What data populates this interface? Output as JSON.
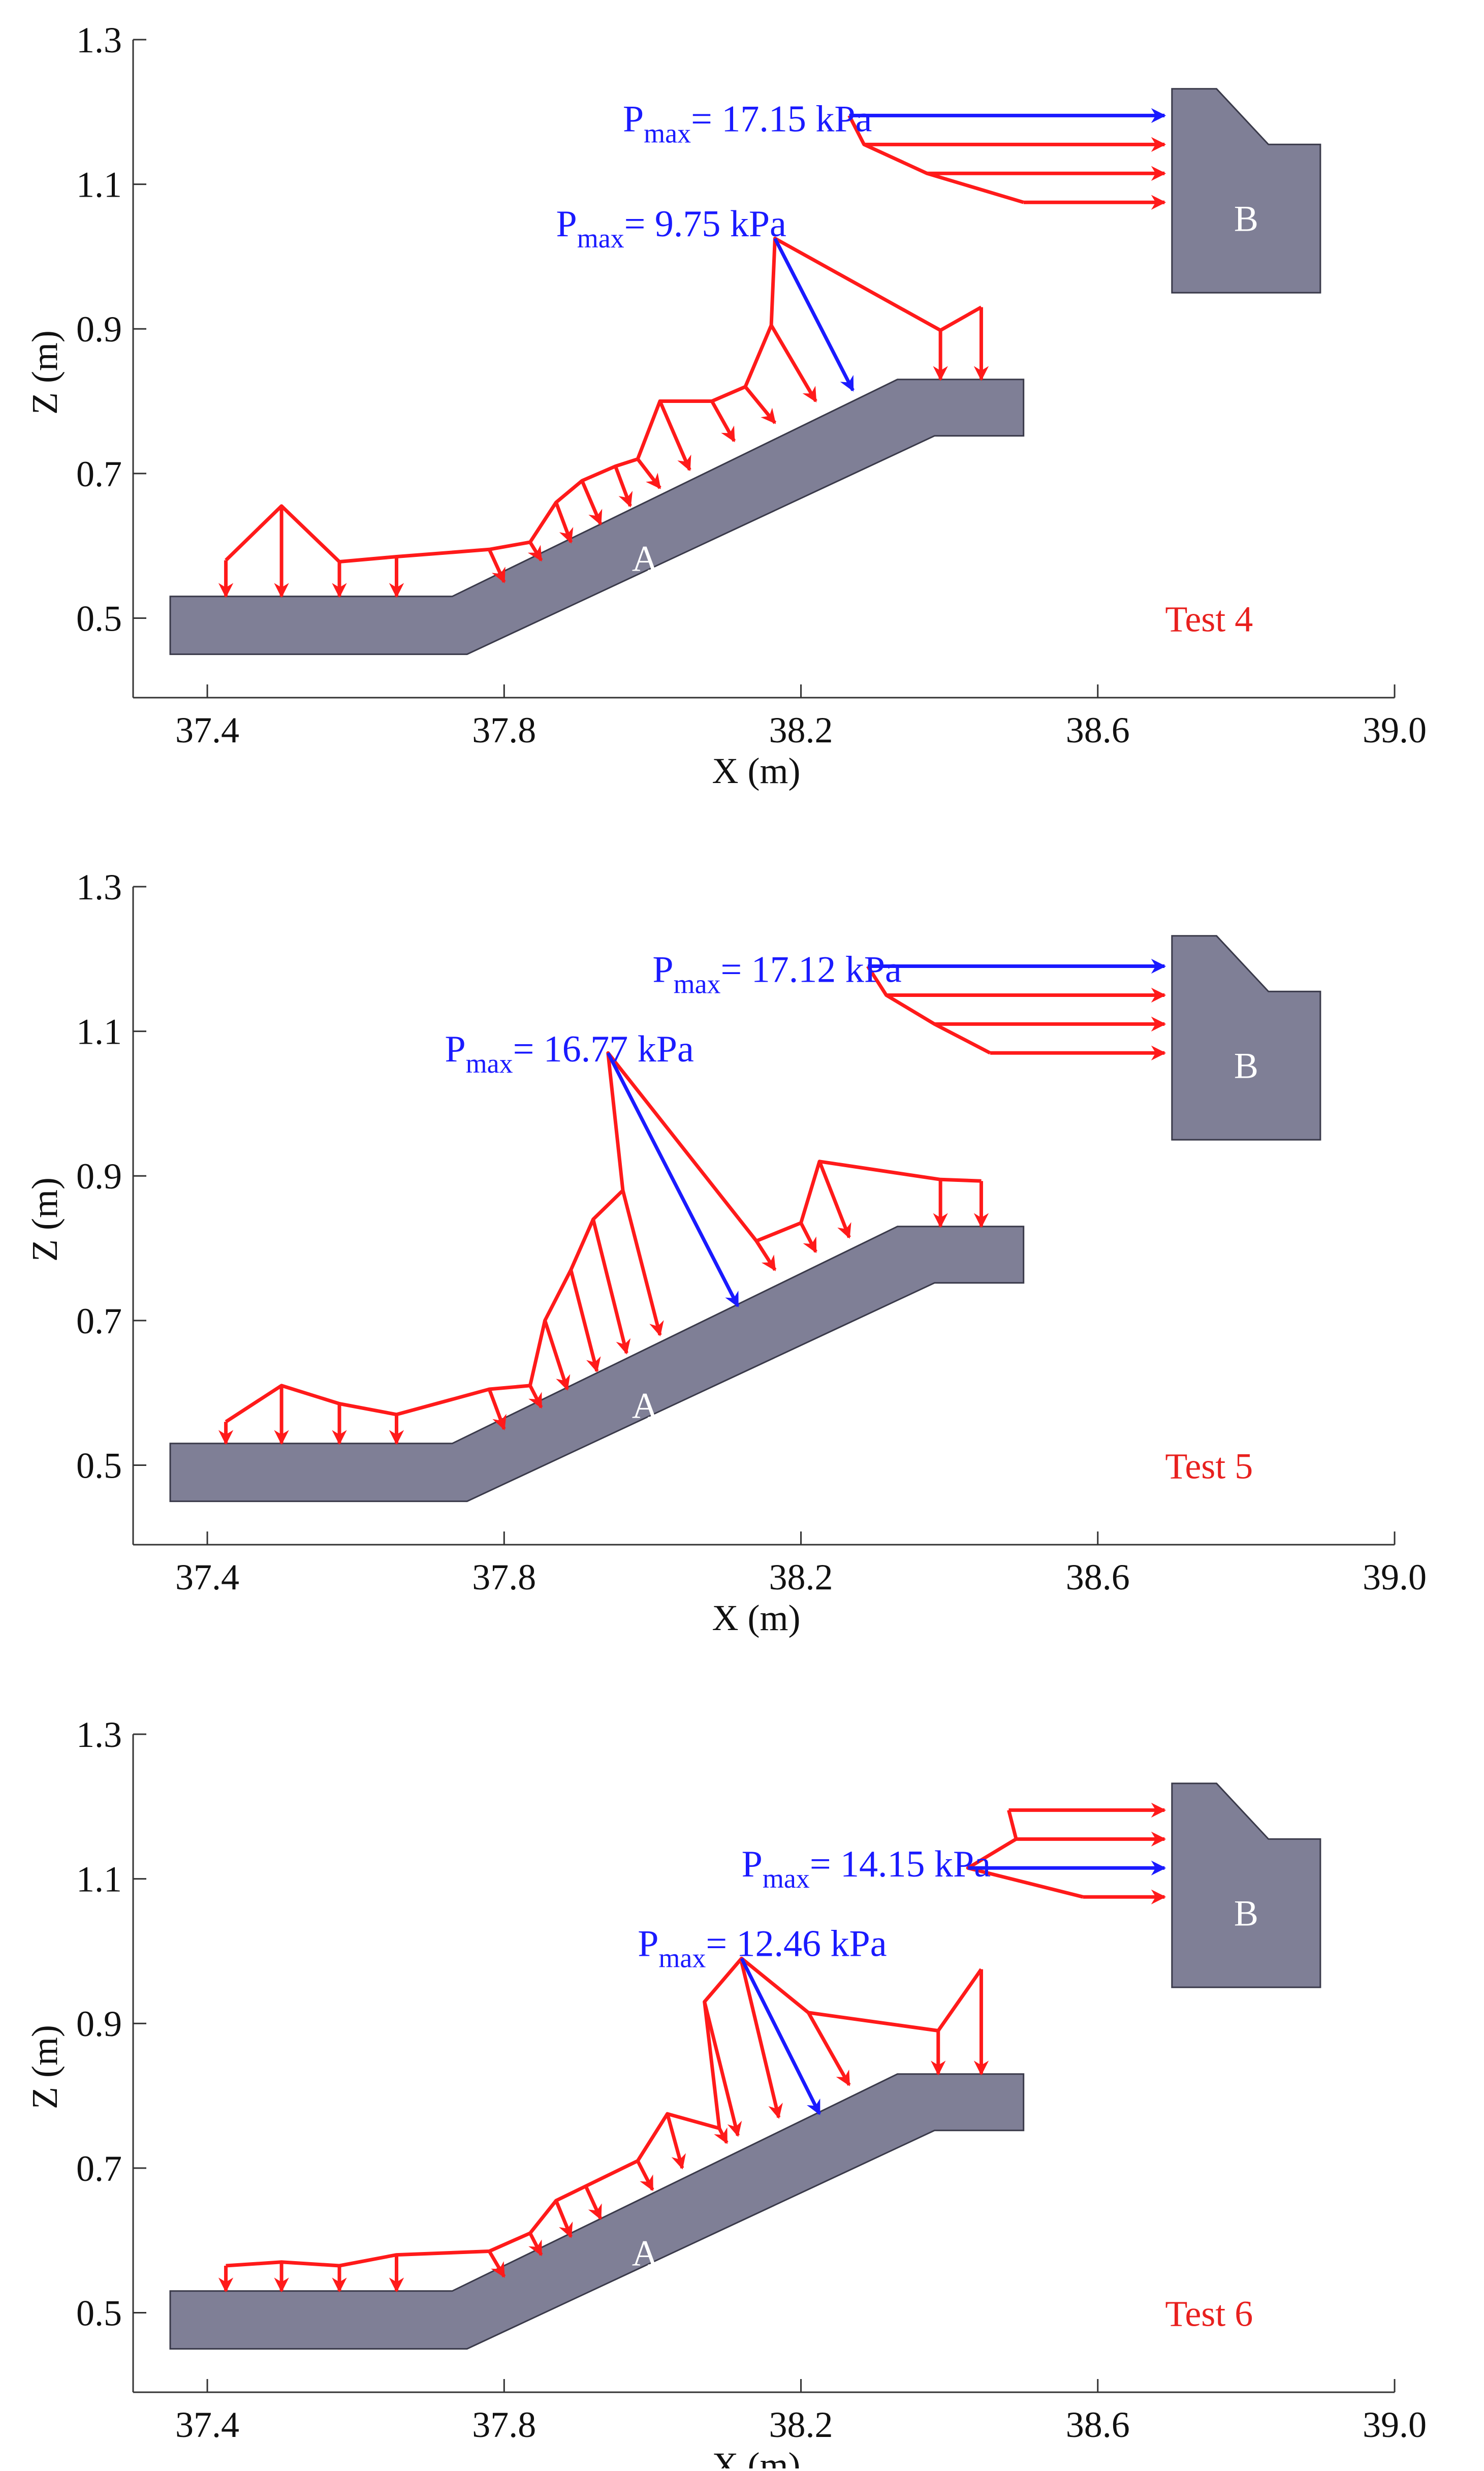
{
  "colors": {
    "structure_fill": "#7f7f96",
    "structure_stroke": "#3a3a4a",
    "pressure": "#ff1a1a",
    "pressure_max": "#1a1aff",
    "axis": "#333333",
    "text": "#111111",
    "structure_label": "#ffffff",
    "test_label": "#e8201e"
  },
  "chart_data": [
    {
      "type": "vector",
      "test_label": "Test 4",
      "xlabel": "X (m)",
      "ylabel": "Z (m)",
      "xlim": [
        37.3,
        39.0
      ],
      "ylim": [
        0.39,
        1.3
      ],
      "xticks": [
        "37.4",
        "37.8",
        "38.2",
        "38.6",
        "39.0"
      ],
      "yticks": [
        "0.5",
        "0.7",
        "0.9",
        "1.1",
        "1.3"
      ],
      "structure_labels": [
        "A",
        "B"
      ],
      "pmax_annotations": [
        {
          "prefix": "P",
          "sub": "max",
          "value": "= 17.15 kPa",
          "x": 37.96,
          "z": 1.19
        },
        {
          "prefix": "P",
          "sub": "max",
          "value": "= 9.75 kPa",
          "x": 37.87,
          "z": 1.045
        }
      ],
      "vectors": [
        {
          "sx": 37.425,
          "sz": 0.58,
          "ex": 37.425,
          "ez": 0.53
        },
        {
          "sx": 37.5,
          "sz": 0.655,
          "ex": 37.5,
          "ez": 0.53
        },
        {
          "sx": 37.578,
          "sz": 0.578,
          "ex": 37.578,
          "ez": 0.53
        },
        {
          "sx": 37.655,
          "sz": 0.585,
          "ex": 37.655,
          "ez": 0.53
        },
        {
          "sx": 37.78,
          "sz": 0.595,
          "ex": 37.8,
          "ez": 0.55
        },
        {
          "sx": 37.835,
          "sz": 0.605,
          "ex": 37.85,
          "ez": 0.58
        },
        {
          "sx": 37.87,
          "sz": 0.66,
          "ex": 37.89,
          "ez": 0.605
        },
        {
          "sx": 37.905,
          "sz": 0.69,
          "ex": 37.93,
          "ez": 0.63
        },
        {
          "sx": 37.95,
          "sz": 0.71,
          "ex": 37.97,
          "ez": 0.655
        },
        {
          "sx": 37.98,
          "sz": 0.72,
          "ex": 38.01,
          "ez": 0.68
        },
        {
          "sx": 38.01,
          "sz": 0.8,
          "ex": 38.05,
          "ez": 0.705
        },
        {
          "sx": 38.08,
          "sz": 0.8,
          "ex": 38.11,
          "ez": 0.745
        },
        {
          "sx": 38.125,
          "sz": 0.82,
          "ex": 38.165,
          "ez": 0.77
        },
        {
          "sx": 38.16,
          "sz": 0.905,
          "ex": 38.22,
          "ez": 0.8
        },
        {
          "sx": 38.388,
          "sz": 0.898,
          "ex": 38.388,
          "ez": 0.83
        },
        {
          "sx": 38.443,
          "sz": 0.93,
          "ex": 38.443,
          "ez": 0.83
        },
        {
          "sx": 38.285,
          "sz": 1.155,
          "ex": 38.69,
          "ez": 1.155
        },
        {
          "sx": 38.37,
          "sz": 1.115,
          "ex": 38.69,
          "ez": 1.115
        },
        {
          "sx": 38.5,
          "sz": 1.075,
          "ex": 38.69,
          "ez": 1.075
        }
      ],
      "pmax_vectors": [
        {
          "sx": 38.265,
          "sz": 1.195,
          "ex": 38.69,
          "ez": 1.195
        },
        {
          "sx": 38.165,
          "sz": 1.025,
          "ex": 38.27,
          "ez": 0.815
        }
      ],
      "envelopes": [
        [
          [
            37.425,
            0.58
          ],
          [
            37.5,
            0.655
          ],
          [
            37.578,
            0.578
          ],
          [
            37.655,
            0.585
          ],
          [
            37.78,
            0.595
          ],
          [
            37.835,
            0.605
          ],
          [
            37.87,
            0.66
          ],
          [
            37.905,
            0.69
          ],
          [
            37.95,
            0.71
          ],
          [
            37.98,
            0.72
          ],
          [
            38.01,
            0.8
          ],
          [
            38.08,
            0.8
          ],
          [
            38.125,
            0.82
          ],
          [
            38.16,
            0.905
          ],
          [
            38.165,
            1.025
          ],
          [
            38.388,
            0.898
          ],
          [
            38.443,
            0.93
          ]
        ],
        [
          [
            38.265,
            1.195
          ],
          [
            38.285,
            1.155
          ],
          [
            38.37,
            1.115
          ],
          [
            38.5,
            1.075
          ]
        ]
      ]
    },
    {
      "type": "vector",
      "test_label": "Test 5",
      "xlabel": "X (m)",
      "ylabel": "Z (m)",
      "xlim": [
        37.3,
        39.0
      ],
      "ylim": [
        0.39,
        1.3
      ],
      "xticks": [
        "37.4",
        "37.8",
        "38.2",
        "38.6",
        "39.0"
      ],
      "yticks": [
        "0.5",
        "0.7",
        "0.9",
        "1.1",
        "1.3"
      ],
      "structure_labels": [
        "A",
        "B"
      ],
      "pmax_annotations": [
        {
          "prefix": "P",
          "sub": "max",
          "value": "= 17.12 kPa",
          "x": 38.0,
          "z": 1.185
        },
        {
          "prefix": "P",
          "sub": "max",
          "value": "= 16.77 kPa",
          "x": 37.72,
          "z": 1.075
        }
      ],
      "vectors": [
        {
          "sx": 37.425,
          "sz": 0.56,
          "ex": 37.425,
          "ez": 0.53
        },
        {
          "sx": 37.5,
          "sz": 0.61,
          "ex": 37.5,
          "ez": 0.53
        },
        {
          "sx": 37.578,
          "sz": 0.585,
          "ex": 37.578,
          "ez": 0.53
        },
        {
          "sx": 37.655,
          "sz": 0.57,
          "ex": 37.655,
          "ez": 0.53
        },
        {
          "sx": 37.78,
          "sz": 0.605,
          "ex": 37.8,
          "ez": 0.55
        },
        {
          "sx": 37.835,
          "sz": 0.61,
          "ex": 37.85,
          "ez": 0.58
        },
        {
          "sx": 37.855,
          "sz": 0.7,
          "ex": 37.885,
          "ez": 0.605
        },
        {
          "sx": 37.89,
          "sz": 0.77,
          "ex": 37.925,
          "ez": 0.63
        },
        {
          "sx": 37.92,
          "sz": 0.84,
          "ex": 37.965,
          "ez": 0.655
        },
        {
          "sx": 37.96,
          "sz": 0.88,
          "ex": 38.01,
          "ez": 0.68
        },
        {
          "sx": 38.14,
          "sz": 0.81,
          "ex": 38.165,
          "ez": 0.77
        },
        {
          "sx": 38.2,
          "sz": 0.835,
          "ex": 38.22,
          "ez": 0.795
        },
        {
          "sx": 38.225,
          "sz": 0.92,
          "ex": 38.265,
          "ez": 0.815
        },
        {
          "sx": 38.388,
          "sz": 0.895,
          "ex": 38.388,
          "ez": 0.83
        },
        {
          "sx": 38.443,
          "sz": 0.893,
          "ex": 38.443,
          "ez": 0.83
        },
        {
          "sx": 38.315,
          "sz": 1.15,
          "ex": 38.69,
          "ez": 1.15
        },
        {
          "sx": 38.38,
          "sz": 1.11,
          "ex": 38.69,
          "ez": 1.11
        },
        {
          "sx": 38.455,
          "sz": 1.07,
          "ex": 38.69,
          "ez": 1.07
        }
      ],
      "pmax_vectors": [
        {
          "sx": 38.29,
          "sz": 1.19,
          "ex": 38.69,
          "ez": 1.19
        },
        {
          "sx": 37.94,
          "sz": 1.07,
          "ex": 38.115,
          "ez": 0.72
        }
      ],
      "envelopes": [
        [
          [
            37.425,
            0.56
          ],
          [
            37.5,
            0.61
          ],
          [
            37.578,
            0.585
          ],
          [
            37.655,
            0.57
          ],
          [
            37.78,
            0.605
          ],
          [
            37.835,
            0.61
          ],
          [
            37.855,
            0.7
          ],
          [
            37.89,
            0.77
          ],
          [
            37.92,
            0.84
          ],
          [
            37.96,
            0.88
          ],
          [
            37.94,
            1.07
          ],
          [
            38.14,
            0.81
          ],
          [
            38.2,
            0.835
          ],
          [
            38.225,
            0.92
          ],
          [
            38.388,
            0.895
          ],
          [
            38.443,
            0.893
          ]
        ],
        [
          [
            38.29,
            1.19
          ],
          [
            38.315,
            1.15
          ],
          [
            38.38,
            1.11
          ],
          [
            38.455,
            1.07
          ]
        ]
      ]
    },
    {
      "type": "vector",
      "test_label": "Test 6",
      "xlabel": "X (m)",
      "ylabel": "Z (m)",
      "xlim": [
        37.3,
        39.0
      ],
      "ylim": [
        0.39,
        1.3
      ],
      "xticks": [
        "37.4",
        "37.8",
        "38.2",
        "38.6",
        "39.0"
      ],
      "yticks": [
        "0.5",
        "0.7",
        "0.9",
        "1.1",
        "1.3"
      ],
      "structure_labels": [
        "A",
        "B"
      ],
      "pmax_annotations": [
        {
          "prefix": "P",
          "sub": "max",
          "value": "= 14.15 kPa",
          "x": 38.12,
          "z": 1.12
        },
        {
          "prefix": "P",
          "sub": "max",
          "value": "= 12.46 kPa",
          "x": 37.98,
          "z": 1.01
        }
      ],
      "vectors": [
        {
          "sx": 37.425,
          "sz": 0.565,
          "ex": 37.425,
          "ez": 0.53
        },
        {
          "sx": 37.5,
          "sz": 0.57,
          "ex": 37.5,
          "ez": 0.53
        },
        {
          "sx": 37.578,
          "sz": 0.565,
          "ex": 37.578,
          "ez": 0.53
        },
        {
          "sx": 37.655,
          "sz": 0.58,
          "ex": 37.655,
          "ez": 0.53
        },
        {
          "sx": 37.78,
          "sz": 0.585,
          "ex": 37.8,
          "ez": 0.55
        },
        {
          "sx": 37.835,
          "sz": 0.61,
          "ex": 37.85,
          "ez": 0.58
        },
        {
          "sx": 37.87,
          "sz": 0.655,
          "ex": 37.89,
          "ez": 0.605
        },
        {
          "sx": 37.91,
          "sz": 0.675,
          "ex": 37.93,
          "ez": 0.63
        },
        {
          "sx": 37.98,
          "sz": 0.71,
          "ex": 38.0,
          "ez": 0.67
        },
        {
          "sx": 38.02,
          "sz": 0.775,
          "ex": 38.04,
          "ez": 0.7
        },
        {
          "sx": 38.07,
          "sz": 0.93,
          "ex": 38.115,
          "ez": 0.745
        },
        {
          "sx": 38.09,
          "sz": 0.755,
          "ex": 38.1,
          "ez": 0.735
        },
        {
          "sx": 38.12,
          "sz": 0.985,
          "ex": 38.17,
          "ez": 0.77
        },
        {
          "sx": 38.21,
          "sz": 0.915,
          "ex": 38.265,
          "ez": 0.815
        },
        {
          "sx": 38.385,
          "sz": 0.89,
          "ex": 38.385,
          "ez": 0.83
        },
        {
          "sx": 38.443,
          "sz": 0.975,
          "ex": 38.443,
          "ez": 0.83
        },
        {
          "sx": 38.48,
          "sz": 1.195,
          "ex": 38.69,
          "ez": 1.195
        },
        {
          "sx": 38.49,
          "sz": 1.155,
          "ex": 38.69,
          "ez": 1.155
        },
        {
          "sx": 38.58,
          "sz": 1.075,
          "ex": 38.69,
          "ez": 1.075
        }
      ],
      "pmax_vectors": [
        {
          "sx": 38.425,
          "sz": 1.115,
          "ex": 38.69,
          "ez": 1.115
        },
        {
          "sx": 38.12,
          "sz": 0.99,
          "ex": 38.225,
          "ez": 0.775
        }
      ],
      "envelopes": [
        [
          [
            37.425,
            0.565
          ],
          [
            37.5,
            0.57
          ],
          [
            37.578,
            0.565
          ],
          [
            37.655,
            0.58
          ],
          [
            37.78,
            0.585
          ],
          [
            37.835,
            0.61
          ],
          [
            37.87,
            0.655
          ],
          [
            37.91,
            0.675
          ],
          [
            37.98,
            0.71
          ],
          [
            38.02,
            0.775
          ],
          [
            38.09,
            0.755
          ],
          [
            38.07,
            0.93
          ],
          [
            38.12,
            0.99
          ],
          [
            38.21,
            0.915
          ],
          [
            38.385,
            0.89
          ],
          [
            38.443,
            0.975
          ]
        ],
        [
          [
            38.48,
            1.195
          ],
          [
            38.49,
            1.155
          ],
          [
            38.425,
            1.115
          ],
          [
            38.58,
            1.075
          ]
        ]
      ]
    }
  ]
}
